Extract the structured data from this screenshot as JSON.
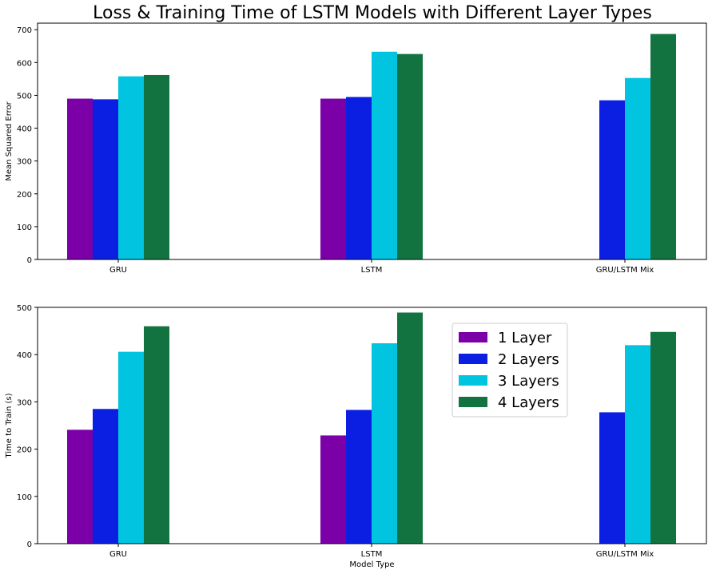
{
  "figure": {
    "title": "Loss & Training Time of LSTM Models with Different Layer Types"
  },
  "legend": {
    "placement": "upper-right",
    "entries": [
      "1 Layer",
      "2 Layers",
      "3 Layers",
      "4 Layers"
    ]
  },
  "colors": {
    "series": [
      "#7b00a8",
      "#0b1fe2",
      "#00c4e0",
      "#127340"
    ],
    "axis": "#000000",
    "background": "#ffffff"
  },
  "chart_data": [
    {
      "type": "bar",
      "title": "",
      "xlabel": "",
      "ylabel": "Mean Squared Error",
      "ylim": [
        0,
        720
      ],
      "yticks": [
        0,
        100,
        200,
        300,
        400,
        500,
        600,
        700
      ],
      "categories": [
        "GRU",
        "LSTM",
        "GRU/LSTM Mix"
      ],
      "grid": false,
      "series": [
        {
          "name": "1 Layer",
          "values": [
            490,
            490,
            null
          ]
        },
        {
          "name": "2 Layers",
          "values": [
            488,
            495,
            485
          ]
        },
        {
          "name": "3 Layers",
          "values": [
            558,
            633,
            553
          ]
        },
        {
          "name": "4 Layers",
          "values": [
            562,
            626,
            687
          ]
        }
      ]
    },
    {
      "type": "bar",
      "title": "",
      "xlabel": "Model Type",
      "ylabel": "Time to Train (s)",
      "ylim": [
        0,
        500
      ],
      "yticks": [
        0,
        100,
        200,
        300,
        400,
        500
      ],
      "categories": [
        "GRU",
        "LSTM",
        "GRU/LSTM Mix"
      ],
      "grid": false,
      "series": [
        {
          "name": "1 Layer",
          "values": [
            241,
            229,
            null
          ]
        },
        {
          "name": "2 Layers",
          "values": [
            285,
            283,
            278
          ]
        },
        {
          "name": "3 Layers",
          "values": [
            406,
            424,
            420
          ]
        },
        {
          "name": "4 Layers",
          "values": [
            460,
            489,
            448
          ]
        }
      ]
    }
  ]
}
